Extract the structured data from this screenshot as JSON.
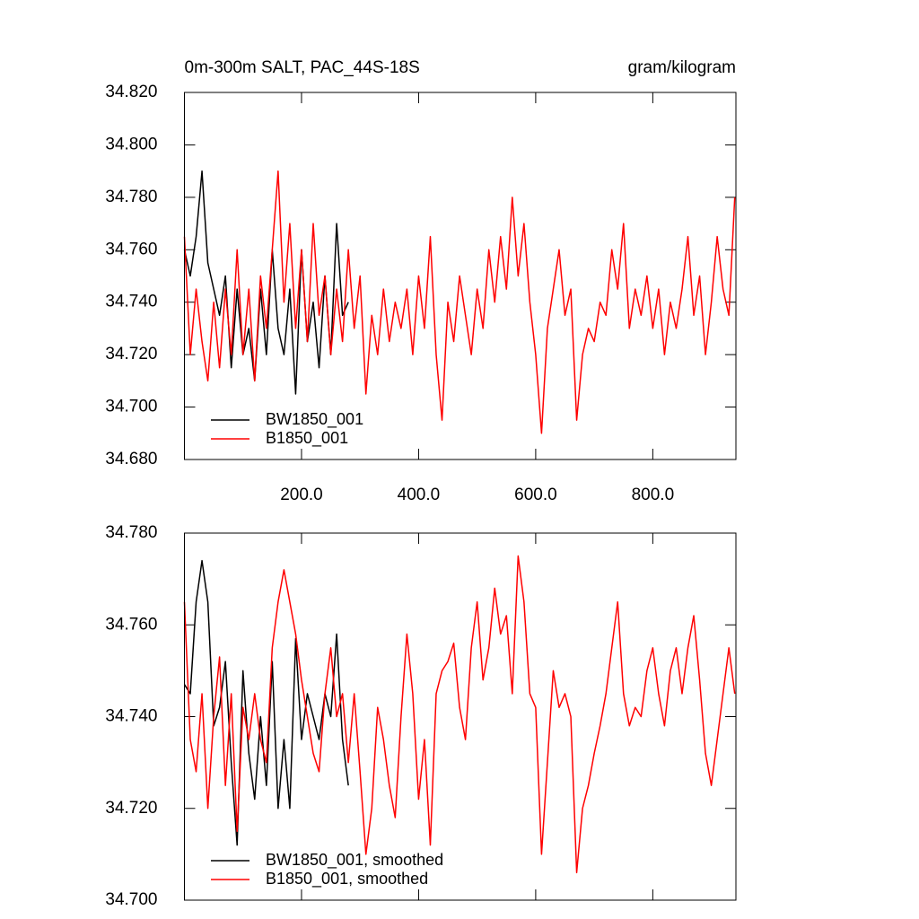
{
  "chart_data": [
    {
      "type": "line",
      "left_title": "0m-300m SALT, PAC_44S-18S",
      "right_title": "gram/kilogram",
      "x": [
        0,
        10,
        20,
        30,
        40,
        50,
        60,
        70,
        80,
        90,
        100,
        110,
        120,
        130,
        140,
        150,
        160,
        170,
        180,
        190,
        200,
        210,
        220,
        230,
        240,
        250,
        260,
        270,
        280,
        290,
        300,
        310,
        320,
        330,
        340,
        350,
        360,
        370,
        380,
        390,
        400,
        410,
        420,
        430,
        440,
        450,
        460,
        470,
        480,
        490,
        500,
        510,
        520,
        530,
        540,
        550,
        560,
        570,
        580,
        590,
        600,
        610,
        620,
        630,
        640,
        650,
        660,
        670,
        680,
        690,
        700,
        710,
        720,
        730,
        740,
        750,
        760,
        770,
        780,
        790,
        800,
        810,
        820,
        830,
        840,
        850,
        860,
        870,
        880,
        890,
        900,
        910,
        920,
        930,
        940
      ],
      "xlim": [
        0,
        942
      ],
      "ylim": [
        34.68,
        34.82
      ],
      "xticks": [
        {
          "value": 200,
          "label": "200.0"
        },
        {
          "value": 400,
          "label": "400.0"
        },
        {
          "value": 600,
          "label": "600.0"
        },
        {
          "value": 800,
          "label": "800.0"
        }
      ],
      "yticks": [
        {
          "value": 34.68,
          "label": "34.680"
        },
        {
          "value": 34.7,
          "label": "34.700"
        },
        {
          "value": 34.72,
          "label": "34.720"
        },
        {
          "value": 34.74,
          "label": "34.740"
        },
        {
          "value": 34.76,
          "label": "34.760"
        },
        {
          "value": 34.78,
          "label": "34.780"
        },
        {
          "value": 34.8,
          "label": "34.800"
        },
        {
          "value": 34.82,
          "label": "34.820"
        }
      ],
      "legend": "lower-left",
      "series": [
        {
          "name": "BW1850_001",
          "color": "#000000",
          "values": [
            34.76,
            34.75,
            34.765,
            34.79,
            34.755,
            34.745,
            34.735,
            34.75,
            34.715,
            34.745,
            34.72,
            34.73,
            34.71,
            34.745,
            34.72,
            34.76,
            34.73,
            34.72,
            34.745,
            34.705,
            34.76,
            34.725,
            34.74,
            34.715,
            34.75,
            34.72,
            34.77,
            34.735,
            34.74,
            null,
            null,
            null,
            null,
            null,
            null,
            null,
            null,
            null,
            null,
            null,
            null,
            null,
            null,
            null,
            null,
            null,
            null,
            null,
            null,
            null,
            null,
            null,
            null,
            null,
            null,
            null,
            null,
            null,
            null,
            null,
            null,
            null,
            null,
            null,
            null,
            null,
            null,
            null,
            null,
            null,
            null,
            null,
            null,
            null,
            null,
            null,
            null,
            null,
            null,
            null,
            null,
            null,
            null,
            null,
            null,
            null,
            null,
            null,
            null,
            null,
            null,
            null,
            null,
            null,
            null
          ]
        },
        {
          "name": "B1850_001",
          "color": "#ff0000",
          "values": [
            34.765,
            34.72,
            34.745,
            34.725,
            34.71,
            34.74,
            34.715,
            34.745,
            34.72,
            34.76,
            34.72,
            34.745,
            34.71,
            34.75,
            34.73,
            34.76,
            34.79,
            34.74,
            34.77,
            34.73,
            34.76,
            34.725,
            34.77,
            34.735,
            34.75,
            34.72,
            34.745,
            34.725,
            34.76,
            34.73,
            34.75,
            34.705,
            34.735,
            34.72,
            34.745,
            34.725,
            34.74,
            34.73,
            34.745,
            34.72,
            34.75,
            34.73,
            34.765,
            34.72,
            34.695,
            34.74,
            34.725,
            34.75,
            34.735,
            34.72,
            34.745,
            34.73,
            34.76,
            34.74,
            34.765,
            34.745,
            34.78,
            34.75,
            34.77,
            34.74,
            34.72,
            34.69,
            34.73,
            34.745,
            34.76,
            34.735,
            34.745,
            34.695,
            34.72,
            34.73,
            34.725,
            34.74,
            34.735,
            34.76,
            34.745,
            34.77,
            34.73,
            34.745,
            34.735,
            34.75,
            34.73,
            34.745,
            34.72,
            34.74,
            34.73,
            34.745,
            34.765,
            34.735,
            34.75,
            34.72,
            34.74,
            34.765,
            34.745,
            34.735,
            34.78
          ]
        }
      ]
    },
    {
      "type": "line",
      "x": [
        0,
        10,
        20,
        30,
        40,
        50,
        60,
        70,
        80,
        90,
        100,
        110,
        120,
        130,
        140,
        150,
        160,
        170,
        180,
        190,
        200,
        210,
        220,
        230,
        240,
        250,
        260,
        270,
        280,
        290,
        300,
        310,
        320,
        330,
        340,
        350,
        360,
        370,
        380,
        390,
        400,
        410,
        420,
        430,
        440,
        450,
        460,
        470,
        480,
        490,
        500,
        510,
        520,
        530,
        540,
        550,
        560,
        570,
        580,
        590,
        600,
        610,
        620,
        630,
        640,
        650,
        660,
        670,
        680,
        690,
        700,
        710,
        720,
        730,
        740,
        750,
        760,
        770,
        780,
        790,
        800,
        810,
        820,
        830,
        840,
        850,
        860,
        870,
        880,
        890,
        900,
        910,
        920,
        930,
        940
      ],
      "xlim": [
        0,
        942
      ],
      "ylim": [
        34.7,
        34.78
      ],
      "xticks": [
        200,
        400,
        600,
        800
      ],
      "yticks": [
        {
          "value": 34.7,
          "label": "34.700"
        },
        {
          "value": 34.72,
          "label": "34.720"
        },
        {
          "value": 34.74,
          "label": "34.740"
        },
        {
          "value": 34.76,
          "label": "34.760"
        },
        {
          "value": 34.78,
          "label": "34.780"
        }
      ],
      "legend": "lower-left",
      "series": [
        {
          "name": "BW1850_001, smoothed",
          "color": "#000000",
          "values": [
            34.747,
            34.745,
            34.765,
            34.774,
            34.765,
            34.738,
            34.742,
            34.752,
            34.73,
            34.712,
            34.75,
            34.732,
            34.722,
            34.74,
            34.725,
            34.752,
            34.72,
            34.735,
            34.72,
            34.757,
            34.735,
            34.745,
            34.74,
            34.735,
            34.745,
            34.74,
            34.758,
            34.735,
            34.725,
            null,
            null,
            null,
            null,
            null,
            null,
            null,
            null,
            null,
            null,
            null,
            null,
            null,
            null,
            null,
            null,
            null,
            null,
            null,
            null,
            null,
            null,
            null,
            null,
            null,
            null,
            null,
            null,
            null,
            null,
            null,
            null,
            null,
            null,
            null,
            null,
            null,
            null,
            null,
            null,
            null,
            null,
            null,
            null,
            null,
            null,
            null,
            null,
            null,
            null,
            null,
            null,
            null,
            null,
            null,
            null,
            null,
            null,
            null,
            null,
            null,
            null,
            null,
            null,
            null,
            null
          ]
        },
        {
          "name": "B1850_001, smoothed",
          "color": "#ff0000",
          "values": [
            34.765,
            34.735,
            34.728,
            34.745,
            34.72,
            34.74,
            34.753,
            34.725,
            34.745,
            34.715,
            34.742,
            34.735,
            34.745,
            34.735,
            34.73,
            34.755,
            34.765,
            34.772,
            34.765,
            34.758,
            34.748,
            34.74,
            34.732,
            34.728,
            34.745,
            34.755,
            34.74,
            34.745,
            34.73,
            34.745,
            34.728,
            34.71,
            34.72,
            34.742,
            34.735,
            34.725,
            34.718,
            34.74,
            34.758,
            34.745,
            34.722,
            34.735,
            34.712,
            34.745,
            34.75,
            34.752,
            34.756,
            34.742,
            34.735,
            34.755,
            34.765,
            34.748,
            34.755,
            34.768,
            34.758,
            34.762,
            34.745,
            34.775,
            34.765,
            34.745,
            34.742,
            34.71,
            34.73,
            34.75,
            34.742,
            34.745,
            34.74,
            34.706,
            34.72,
            34.725,
            34.732,
            34.738,
            34.745,
            34.755,
            34.765,
            34.745,
            34.738,
            34.742,
            34.74,
            34.75,
            34.755,
            34.745,
            34.738,
            34.75,
            34.755,
            34.745,
            34.755,
            34.762,
            34.748,
            34.732,
            34.725,
            34.735,
            34.745,
            34.755,
            34.745
          ]
        }
      ]
    }
  ]
}
